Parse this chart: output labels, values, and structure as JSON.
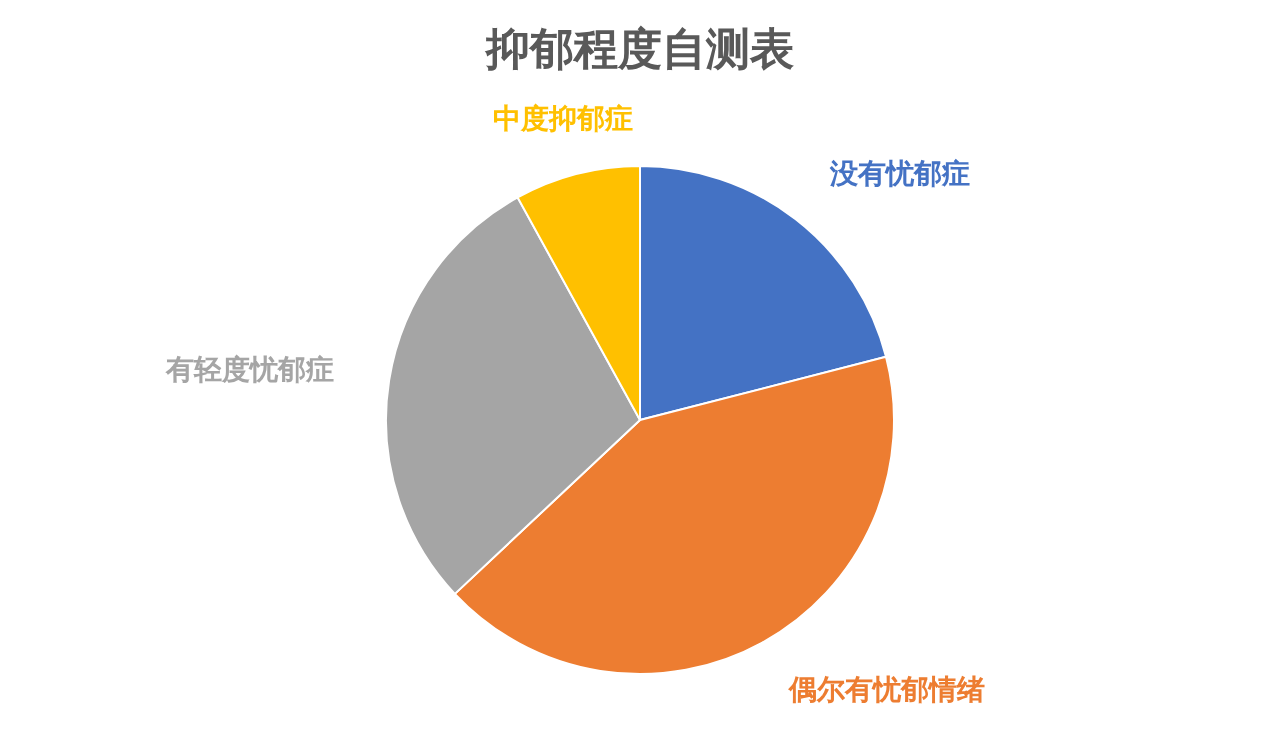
{
  "chart_data": {
    "type": "pie",
    "title": "抑郁程度自测表",
    "categories": [
      "没有忧郁症",
      "偶尔有忧郁情绪",
      "有轻度忧郁症",
      "中度抑郁症"
    ],
    "values": [
      21,
      42,
      29,
      8
    ],
    "colors": [
      "#4472c4",
      "#ed7d31",
      "#a5a5a5",
      "#ffc000"
    ],
    "legend": false
  }
}
